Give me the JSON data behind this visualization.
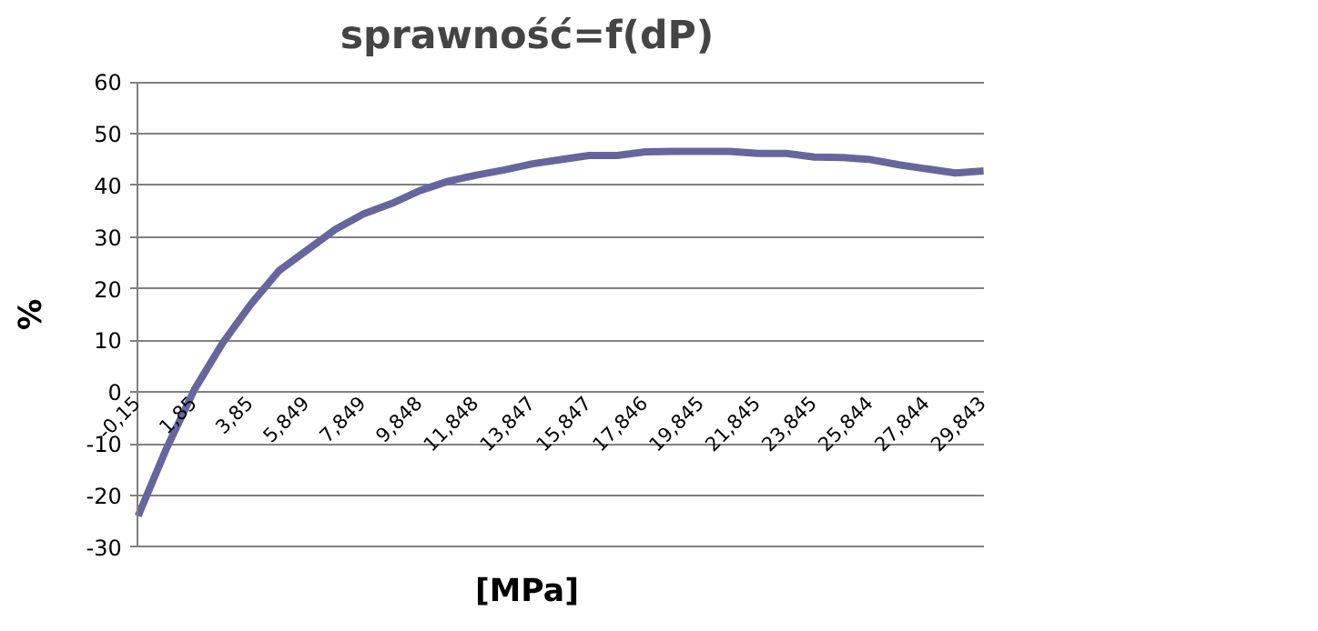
{
  "chart_data": {
    "type": "line",
    "title": "sprawność=f(dP)",
    "xlabel": "[MPa]",
    "ylabel": "%",
    "categories": [
      "-0,15",
      null,
      "1,85",
      null,
      "3,85",
      null,
      "5,849",
      null,
      "7,849",
      null,
      "9,848",
      null,
      "11,848",
      null,
      "13,847",
      null,
      "15,847",
      null,
      "17,846",
      null,
      "19,845",
      null,
      "21,845",
      null,
      "23,845",
      null,
      "25,844",
      null,
      "27,844",
      null,
      "29,843"
    ],
    "series": [
      {
        "color": "#66669e",
        "values": [
          -24,
          -11,
          0.5,
          9.5,
          17,
          23.5,
          27.5,
          31.5,
          34.5,
          36.5,
          39,
          40.8,
          42,
          43,
          44.2,
          45,
          45.8,
          45.8,
          46.5,
          46.6,
          46.6,
          46.6,
          46.2,
          46.2,
          45.5,
          45.4,
          45,
          44,
          43.2,
          42.4,
          42.8
        ]
      }
    ],
    "ylim": [
      -30,
      60
    ],
    "yticks": [
      -30,
      -20,
      -10,
      0,
      10,
      20,
      30,
      40,
      50,
      60
    ],
    "grid": "y",
    "marker": "none",
    "line_style": "solid"
  }
}
